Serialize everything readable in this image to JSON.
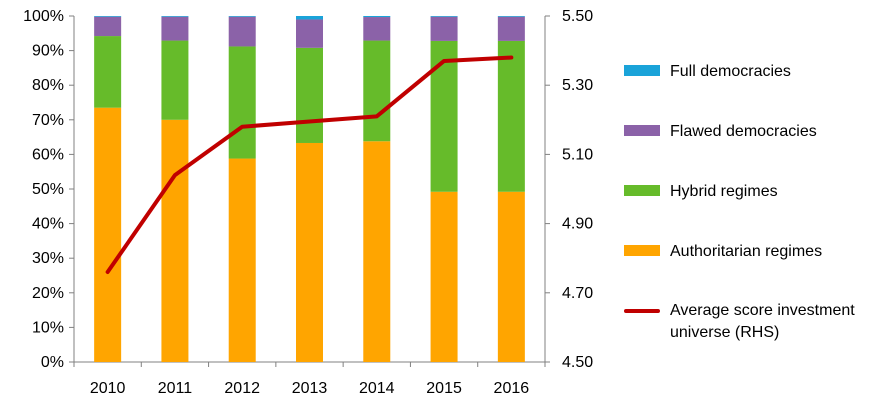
{
  "chart_data": {
    "type": "bar",
    "stacked": true,
    "combo_line": true,
    "categories": [
      "2010",
      "2011",
      "2012",
      "2013",
      "2014",
      "2015",
      "2016"
    ],
    "series": [
      {
        "name": "Authoritarian regimes",
        "color": "#FFA500",
        "values": [
          73.5,
          70.0,
          58.8,
          63.3,
          63.8,
          49.2,
          49.2
        ]
      },
      {
        "name": "Hybrid regimes",
        "color": "#66BB2A",
        "values": [
          20.7,
          22.9,
          32.4,
          27.5,
          29.1,
          43.6,
          43.6
        ]
      },
      {
        "name": "Flawed democracies",
        "color": "#8B62A8",
        "values": [
          5.6,
          6.9,
          8.6,
          8.2,
          6.8,
          7.0,
          7.0
        ]
      },
      {
        "name": "Full democracies",
        "color": "#1AA3D9",
        "values": [
          0.2,
          0.2,
          0.2,
          1.0,
          0.3,
          0.2,
          0.2
        ]
      }
    ],
    "line_series": {
      "name": "Average score investment universe (RHS)",
      "color": "#C00000",
      "axis": "right",
      "values": [
        4.76,
        5.04,
        5.18,
        5.195,
        5.21,
        5.37,
        5.38
      ]
    },
    "y_left": {
      "min": 0,
      "max": 100,
      "step": 10,
      "tick_labels": [
        "0%",
        "10%",
        "20%",
        "30%",
        "40%",
        "50%",
        "60%",
        "70%",
        "80%",
        "90%",
        "100%"
      ]
    },
    "y_right": {
      "min": 4.5,
      "max": 5.5,
      "tick_labels": [
        "4.50",
        "4.70",
        "4.90",
        "5.10",
        "5.30",
        "5.50"
      ]
    },
    "title": "",
    "xlabel": "",
    "ylabel": "",
    "legend_position": "right"
  },
  "legend": {
    "items": [
      {
        "label": "Full democracies",
        "color": "#1AA3D9"
      },
      {
        "label": "Flawed democracies",
        "color": "#8B62A8"
      },
      {
        "label": "Hybrid regimes",
        "color": "#66BB2A"
      },
      {
        "label": "Authoritarian regimes",
        "color": "#FFA500"
      }
    ],
    "line_item": {
      "label_line1": "Average score investment",
      "label_line2": "universe (RHS)",
      "color": "#C00000"
    }
  }
}
